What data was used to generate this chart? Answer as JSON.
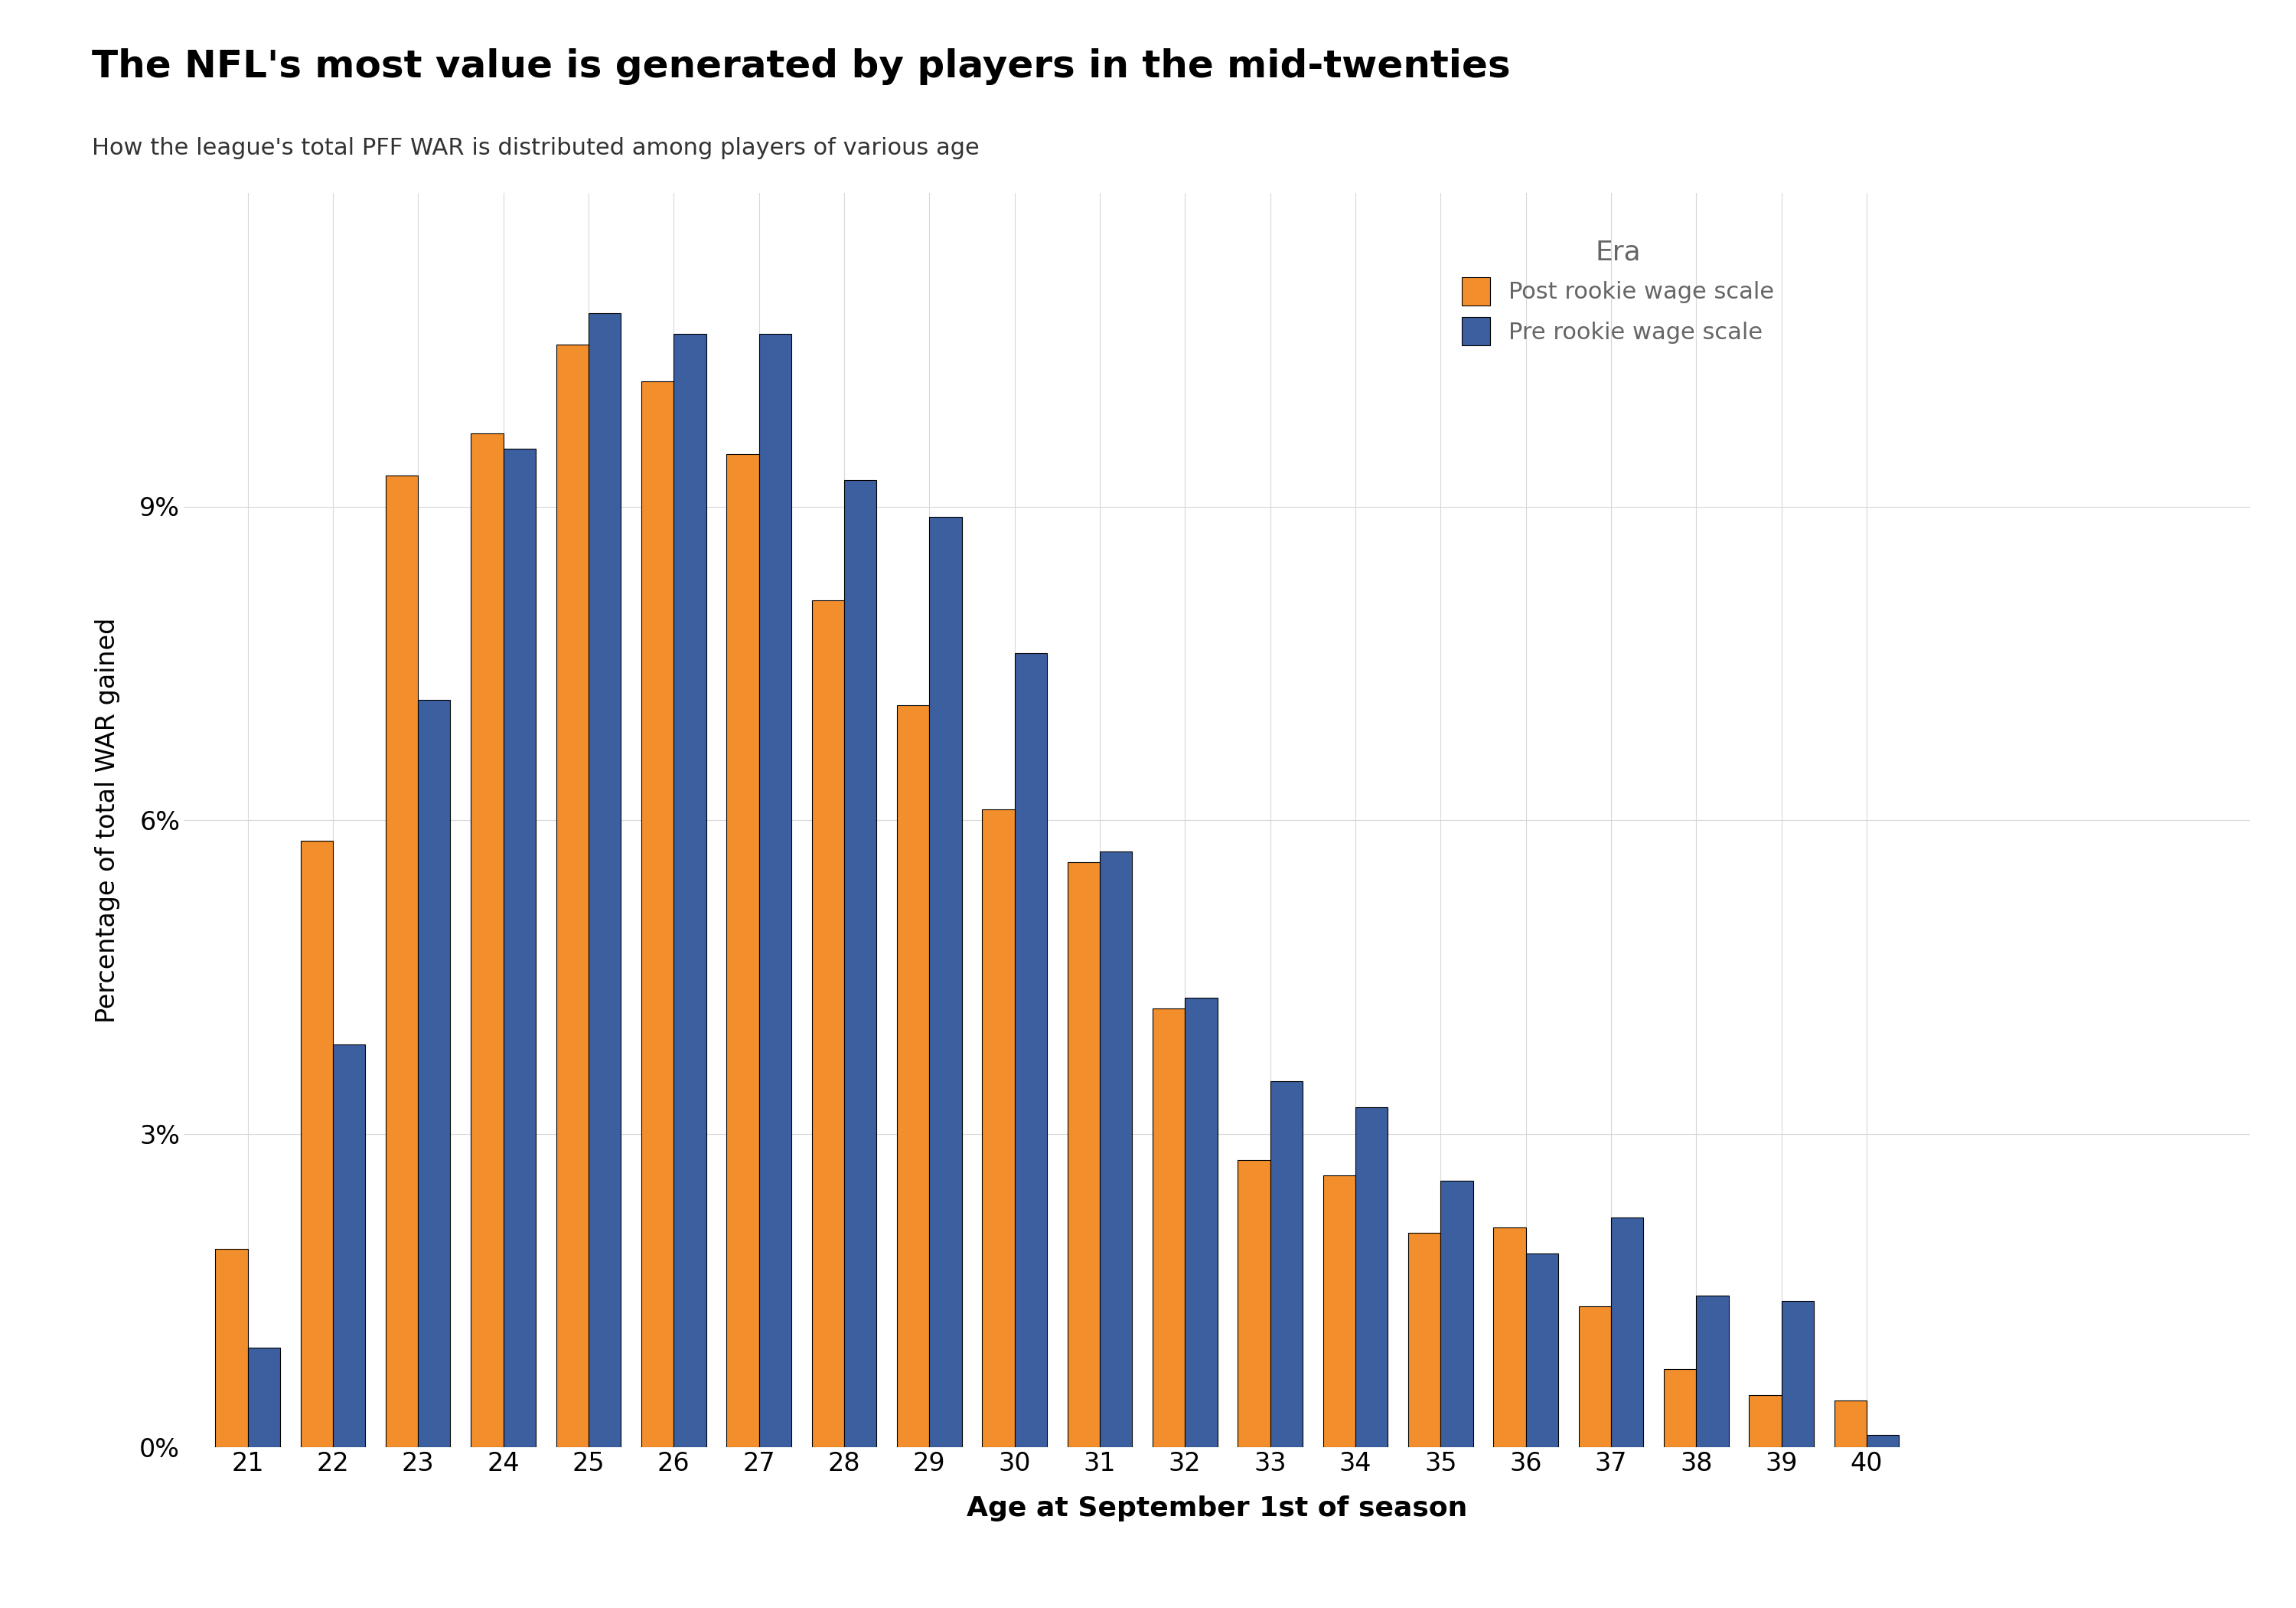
{
  "title": "The NFL's most value is generated by players in the mid-twenties",
  "subtitle": "How the league's total PFF WAR is distributed among players of various age",
  "xlabel": "Age at September 1st of season",
  "ylabel": "Percentage of total WAR gained",
  "ages": [
    21,
    22,
    23,
    24,
    25,
    26,
    27,
    28,
    29,
    30,
    31,
    32,
    33,
    34,
    35,
    36,
    37,
    38,
    39,
    40
  ],
  "post_rookie": [
    1.9,
    5.8,
    9.3,
    9.7,
    10.55,
    10.2,
    9.5,
    8.1,
    7.1,
    6.1,
    5.6,
    4.2,
    2.75,
    2.6,
    2.05,
    2.1,
    1.35,
    0.75,
    0.5,
    0.45
  ],
  "pre_rookie": [
    0.95,
    3.85,
    7.15,
    9.55,
    10.85,
    10.65,
    10.65,
    9.25,
    8.9,
    7.6,
    5.7,
    4.3,
    3.5,
    3.25,
    2.55,
    1.85,
    2.2,
    1.45,
    1.4,
    0.12
  ],
  "post_color": "#F28E2B",
  "pre_color": "#3C5FA0",
  "background_color": "#FFFFFF",
  "grid_color": "#D8D8D8",
  "legend_title": "Era",
  "legend_labels": [
    "Post rookie wage scale",
    "Pre rookie wage scale"
  ],
  "legend_text_color": "#666666",
  "ylim": [
    0,
    12
  ],
  "yticks": [
    0,
    3,
    6,
    9
  ],
  "ytick_labels": [
    "0%",
    "3%",
    "6%",
    "9%"
  ]
}
